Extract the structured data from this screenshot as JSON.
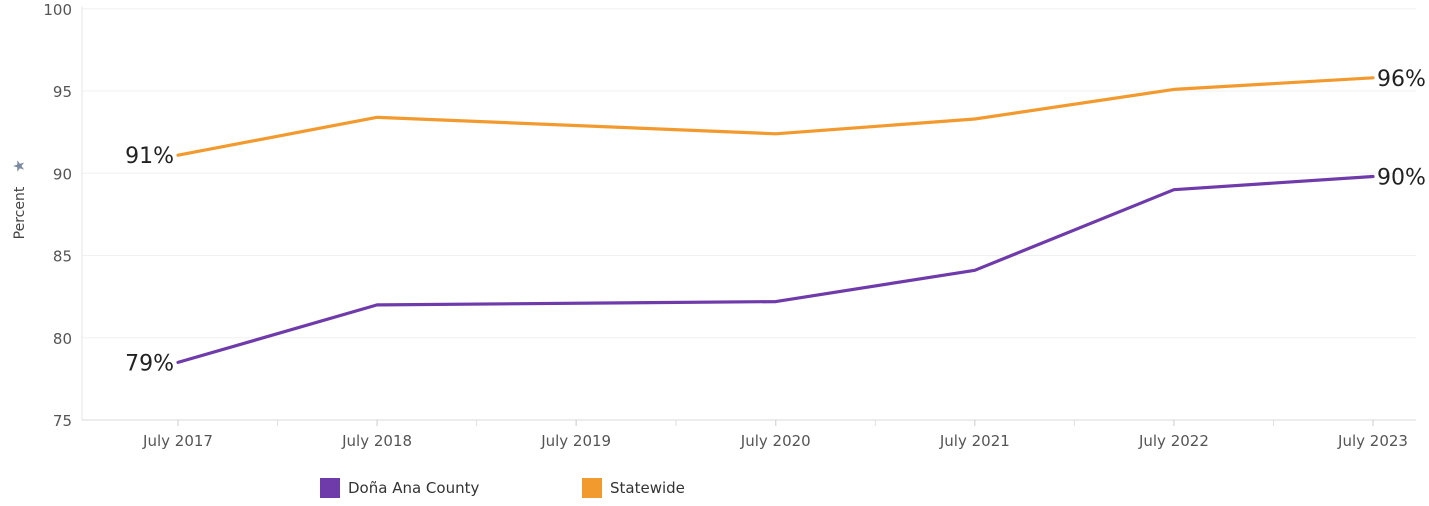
{
  "chart_data": {
    "type": "line",
    "ylabel": "Percent",
    "ylim": [
      75,
      100
    ],
    "yticks": [
      75,
      80,
      85,
      90,
      95,
      100
    ],
    "categories": [
      "July 2017",
      "July 2018",
      "July 2019",
      "July 2020",
      "July 2021",
      "July 2022",
      "July 2023"
    ],
    "x": [
      "2017-07-01",
      "2018-07-01",
      "2020-07-01",
      "2021-07-01",
      "2022-07-01",
      "2023-07-01"
    ],
    "series": [
      {
        "name": "Doña Ana County",
        "color": "#6f3bab",
        "values": [
          78.5,
          82.0,
          82.2,
          84.1,
          89.0,
          89.8
        ],
        "start_label": "79%",
        "end_label": "90%"
      },
      {
        "name": "Statewide",
        "color": "#f39a2f",
        "values": [
          91.1,
          93.4,
          92.4,
          93.3,
          95.1,
          95.8
        ],
        "start_label": "91%",
        "end_label": "96%"
      }
    ],
    "grid": true,
    "legend_position": "bottom"
  }
}
